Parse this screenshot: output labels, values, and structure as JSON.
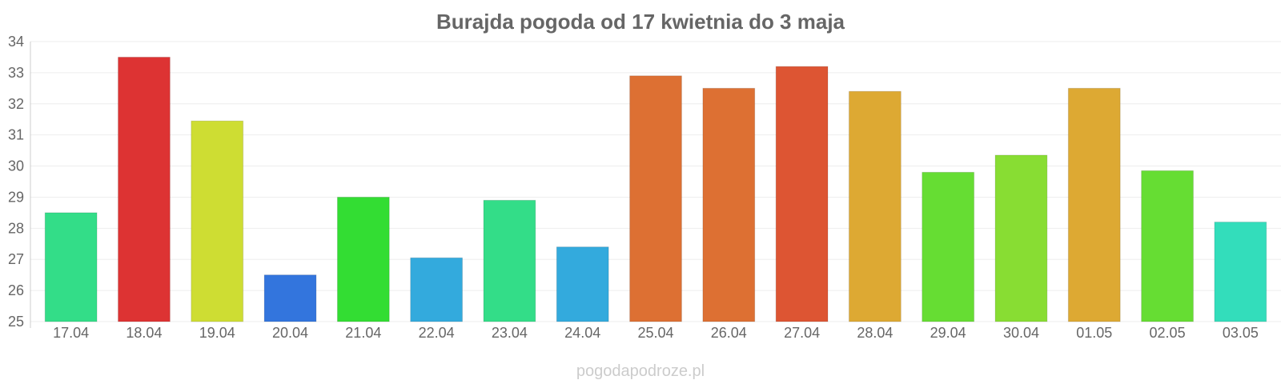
{
  "chart_data": {
    "type": "bar",
    "title": "Burajda pogoda od 17 kwietnia do 3 maja",
    "xlabel": "",
    "ylabel": "",
    "ylim": [
      25,
      34
    ],
    "yticks": [
      "25",
      "26",
      "27",
      "28",
      "29",
      "30",
      "31",
      "32",
      "33",
      "34"
    ],
    "grid": true,
    "categories": [
      "17.04",
      "18.04",
      "19.04",
      "20.04",
      "21.04",
      "22.04",
      "23.04",
      "24.04",
      "25.04",
      "26.04",
      "27.04",
      "28.04",
      "29.04",
      "30.04",
      "01.05",
      "02.05",
      "03.05"
    ],
    "values": [
      28.5,
      33.5,
      31.45,
      26.5,
      29.0,
      27.05,
      28.9,
      27.4,
      32.9,
      32.5,
      33.2,
      32.4,
      29.8,
      30.35,
      32.5,
      29.85,
      28.2
    ],
    "colors": [
      "#33dd88",
      "#dd3333",
      "#cedd33",
      "#3375dd",
      "#33dd33",
      "#33aadd",
      "#33dd88",
      "#33aadd",
      "#dd7033",
      "#dd7033",
      "#dd5533",
      "#dda933",
      "#66dd33",
      "#88dd33",
      "#dda933",
      "#66dd33",
      "#33ddbb"
    ]
  },
  "watermark": "pogodapodroze.pl"
}
